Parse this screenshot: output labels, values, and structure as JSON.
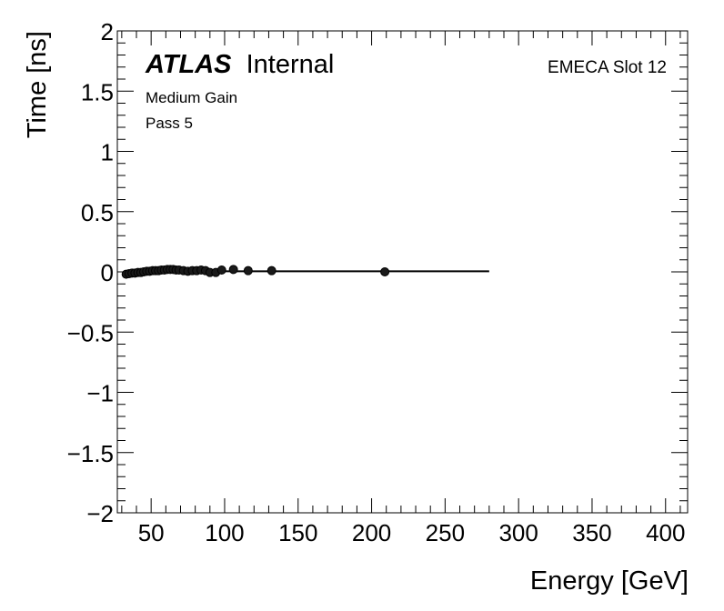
{
  "chart_data": {
    "type": "scatter",
    "title": "",
    "xlabel": "Energy [GeV]",
    "ylabel": "Time [ns]",
    "xlim": [
      27,
      415
    ],
    "ylim": [
      -2,
      2
    ],
    "xticks": [
      50,
      100,
      150,
      200,
      250,
      300,
      350,
      400
    ],
    "yticks": [
      -2,
      -1.5,
      -1,
      -0.5,
      0,
      0.5,
      1,
      1.5,
      2
    ],
    "xtick_labels": [
      "50",
      "100",
      "150",
      "200",
      "250",
      "300",
      "350",
      "400"
    ],
    "ytick_labels": [
      "−2",
      "−1.5",
      "−1",
      "−0.5",
      "0",
      "0.5",
      "1",
      "1.5",
      "2"
    ],
    "annotations": {
      "experiment": "ATLAS",
      "status": "Internal",
      "gain": "Medium Gain",
      "pass": "Pass 5",
      "slot": "EMECA Slot 12"
    },
    "points": [
      {
        "x": 33,
        "y": -0.02
      },
      {
        "x": 35,
        "y": -0.015
      },
      {
        "x": 37,
        "y": -0.01
      },
      {
        "x": 39,
        "y": -0.01
      },
      {
        "x": 41,
        "y": -0.005
      },
      {
        "x": 43,
        "y": -0.005
      },
      {
        "x": 45,
        "y": 0.0
      },
      {
        "x": 47,
        "y": 0.005
      },
      {
        "x": 49,
        "y": 0.005
      },
      {
        "x": 51,
        "y": 0.01
      },
      {
        "x": 53,
        "y": 0.01
      },
      {
        "x": 55,
        "y": 0.01
      },
      {
        "x": 57,
        "y": 0.015
      },
      {
        "x": 59,
        "y": 0.015
      },
      {
        "x": 61,
        "y": 0.02
      },
      {
        "x": 63,
        "y": 0.02
      },
      {
        "x": 65,
        "y": 0.02
      },
      {
        "x": 67,
        "y": 0.015
      },
      {
        "x": 69,
        "y": 0.015
      },
      {
        "x": 72,
        "y": 0.01
      },
      {
        "x": 75,
        "y": 0.005
      },
      {
        "x": 78,
        "y": 0.01
      },
      {
        "x": 81,
        "y": 0.01
      },
      {
        "x": 84,
        "y": 0.015
      },
      {
        "x": 87,
        "y": 0.01
      },
      {
        "x": 90,
        "y": -0.005
      },
      {
        "x": 94,
        "y": -0.005
      },
      {
        "x": 98,
        "y": 0.015
      },
      {
        "x": 106,
        "y": 0.02
      },
      {
        "x": 116,
        "y": 0.01
      },
      {
        "x": 132,
        "y": 0.01
      },
      {
        "x": 209,
        "y": 0.0
      }
    ],
    "fit_line": {
      "x": [
        33,
        280
      ],
      "y": [
        0.005,
        0.005
      ]
    },
    "grid": false,
    "legend": "none"
  }
}
